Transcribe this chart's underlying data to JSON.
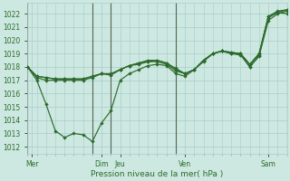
{
  "bg_color": "#cce8e0",
  "grid_color": "#aacccc",
  "line_color": "#2d6b2d",
  "ylabel": "Pression niveau de la mer( hPa )",
  "ylim": [
    1011.5,
    1022.8
  ],
  "yticks": [
    1012,
    1013,
    1014,
    1015,
    1016,
    1017,
    1018,
    1019,
    1020,
    1021,
    1022
  ],
  "xlim": [
    0,
    28
  ],
  "xtick_labels": [
    "Mer",
    "Dim",
    "Jeu",
    "Ven",
    "Sam"
  ],
  "xtick_positions": [
    0.5,
    8,
    10,
    17,
    26
  ],
  "vline_positions": [
    0,
    7,
    9,
    16,
    28
  ],
  "series1_x": [
    0,
    1,
    2,
    3,
    4,
    5,
    6,
    7,
    8,
    9,
    10,
    11,
    12,
    13,
    14,
    15,
    16,
    17,
    18,
    19,
    20,
    21,
    22,
    23,
    24,
    25,
    26,
    27,
    28
  ],
  "series1_y": [
    1018.0,
    1017.3,
    1017.2,
    1017.1,
    1017.1,
    1017.1,
    1017.1,
    1017.3,
    1017.5,
    1017.4,
    1017.8,
    1018.1,
    1018.2,
    1018.4,
    1018.5,
    1018.3,
    1017.8,
    1017.5,
    1017.8,
    1018.5,
    1019.0,
    1019.2,
    1019.1,
    1019.0,
    1018.2,
    1019.0,
    1021.8,
    1022.2,
    1022.3
  ],
  "series2_x": [
    0,
    1,
    2,
    3,
    4,
    5,
    6,
    7,
    8,
    9,
    10,
    11,
    12,
    13,
    14,
    15,
    16,
    17,
    18,
    19,
    20,
    21,
    22,
    23,
    24,
    25,
    26,
    27,
    28
  ],
  "series2_y": [
    1018.0,
    1017.2,
    1017.0,
    1017.0,
    1017.0,
    1017.0,
    1017.0,
    1017.2,
    1017.5,
    1017.4,
    1017.8,
    1018.1,
    1018.3,
    1018.4,
    1018.4,
    1018.2,
    1017.7,
    1017.5,
    1017.8,
    1018.5,
    1019.0,
    1019.2,
    1019.0,
    1019.0,
    1018.0,
    1018.9,
    1021.7,
    1022.1,
    1022.0
  ],
  "series3_x": [
    0,
    1,
    2,
    3,
    4,
    5,
    6,
    7,
    8,
    9,
    10,
    11,
    12,
    13,
    14,
    15,
    16,
    17,
    18,
    19,
    20,
    21,
    22,
    23,
    24,
    25,
    26,
    27,
    28
  ],
  "series3_y": [
    1018.0,
    1017.0,
    1015.2,
    1013.2,
    1012.7,
    1013.0,
    1012.9,
    1012.4,
    1013.8,
    1014.7,
    1017.0,
    1017.5,
    1017.8,
    1018.1,
    1018.2,
    1018.1,
    1017.5,
    1017.3,
    1017.8,
    1018.4,
    1019.0,
    1019.2,
    1019.0,
    1018.9,
    1018.0,
    1018.8,
    1021.5,
    1022.0,
    1022.2
  ],
  "series4_x": [
    0,
    1,
    2,
    3,
    4,
    5,
    6,
    7,
    8,
    9,
    10,
    11,
    12,
    13,
    14,
    15,
    16,
    17,
    18,
    19,
    20,
    21,
    22,
    23,
    24,
    25,
    26,
    27,
    28
  ],
  "series4_y": [
    1018.0,
    1017.3,
    1017.2,
    1017.1,
    1017.1,
    1017.1,
    1017.1,
    1017.3,
    1017.5,
    1017.5,
    1017.8,
    1018.1,
    1018.3,
    1018.5,
    1018.5,
    1018.3,
    1017.9,
    1017.5,
    1017.8,
    1018.5,
    1019.0,
    1019.2,
    1019.1,
    1019.0,
    1018.2,
    1019.0,
    1021.8,
    1022.1,
    1022.3
  ],
  "tick_fontsize": 5.5,
  "label_fontsize": 6.5
}
